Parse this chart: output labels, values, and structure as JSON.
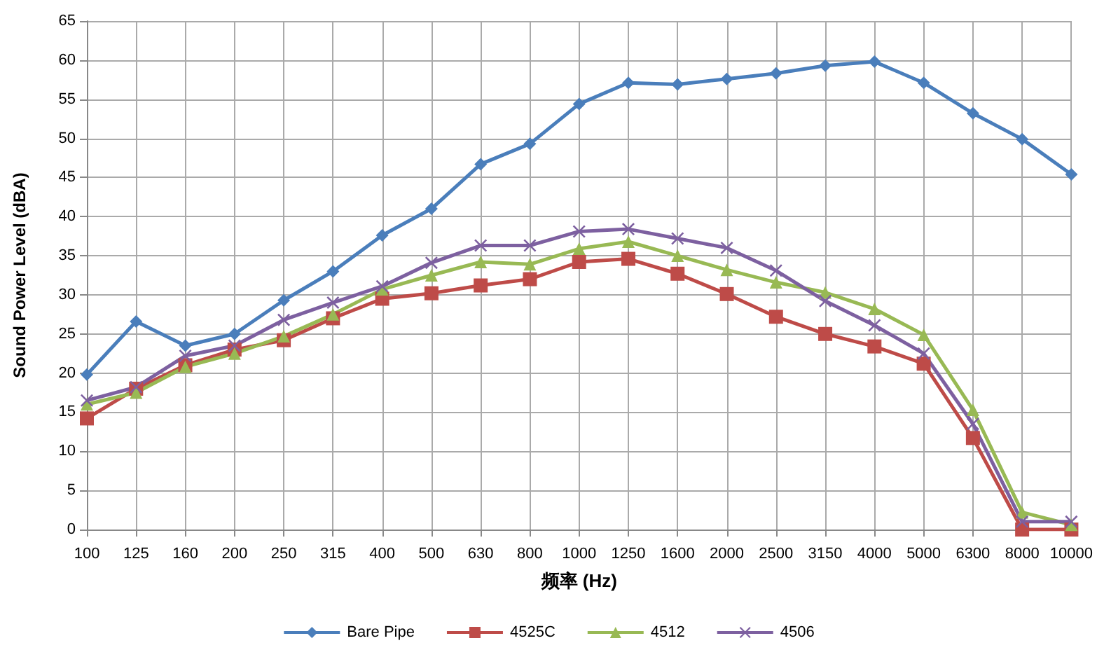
{
  "chart_data": {
    "type": "line",
    "xlabel": "频率 (Hz)",
    "ylabel": "Sound Power Level (dBA)",
    "categories": [
      "100",
      "125",
      "160",
      "200",
      "250",
      "315",
      "400",
      "500",
      "630",
      "800",
      "1000",
      "1250",
      "1600",
      "2000",
      "2500",
      "3150",
      "4000",
      "5000",
      "6300",
      "8000",
      "10000"
    ],
    "series": [
      {
        "name": "Bare Pipe",
        "color": "#4a7ebb",
        "marker": "diamond",
        "values": [
          19.8,
          26.6,
          23.5,
          25.0,
          29.3,
          33.0,
          37.6,
          41.0,
          46.7,
          49.3,
          54.4,
          57.1,
          56.9,
          57.6,
          58.3,
          59.3,
          59.8,
          57.1,
          53.2,
          49.9,
          45.4
        ]
      },
      {
        "name": "4525C",
        "color": "#be4b48",
        "marker": "square",
        "values": [
          14.2,
          18.0,
          21.0,
          23.0,
          24.2,
          27.0,
          29.5,
          30.2,
          31.2,
          32.0,
          34.2,
          34.6,
          32.7,
          30.1,
          27.2,
          25.0,
          23.4,
          21.2,
          11.7,
          0,
          0
        ]
      },
      {
        "name": "4512",
        "color": "#98b954",
        "marker": "triangle",
        "values": [
          16.0,
          17.5,
          20.8,
          22.5,
          24.7,
          27.5,
          30.7,
          32.5,
          34.2,
          33.9,
          35.9,
          36.8,
          35.0,
          33.2,
          31.6,
          30.3,
          28.2,
          24.9,
          15.3,
          2.2,
          0.6
        ]
      },
      {
        "name": "4506",
        "color": "#7d60a0",
        "marker": "cross",
        "values": [
          16.5,
          18.2,
          22.2,
          23.5,
          26.8,
          29.0,
          31.1,
          34.1,
          36.3,
          36.3,
          38.1,
          38.4,
          37.2,
          36.0,
          33.1,
          29.2,
          26.1,
          22.5,
          13.5,
          1.0,
          1.0
        ]
      }
    ],
    "ylim": [
      0,
      65
    ],
    "yticks": [
      0,
      5,
      10,
      15,
      20,
      25,
      30,
      35,
      40,
      45,
      50,
      55,
      60,
      65
    ],
    "grid": true,
    "legend": "bottom",
    "line_style": "solid"
  }
}
